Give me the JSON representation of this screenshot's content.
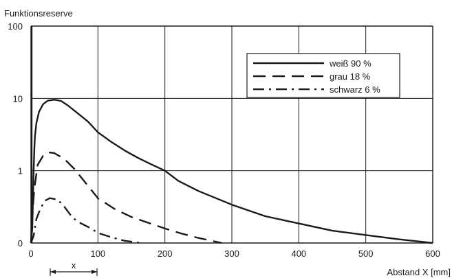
{
  "chart_data": {
    "type": "line",
    "ylabel": "Funktionsreserve",
    "xlabel": "Abstand X [mm]",
    "x_ticks": [
      "0",
      "100",
      "200",
      "300",
      "400",
      "500",
      "600"
    ],
    "y_ticks": [
      "0",
      "1",
      "10",
      "100"
    ],
    "xlim": [
      0,
      600
    ],
    "y_scale": "log",
    "grid": true,
    "legend_position": "top-right",
    "series": [
      {
        "name": "weiß 90 %",
        "style": "solid",
        "points": [
          [
            0,
            0
          ],
          [
            2,
            0.2
          ],
          [
            4,
            1.0
          ],
          [
            5,
            2
          ],
          [
            6,
            3
          ],
          [
            8,
            4.5
          ],
          [
            12,
            6.5
          ],
          [
            18,
            8.3
          ],
          [
            25,
            9.3
          ],
          [
            35,
            9.6
          ],
          [
            45,
            9.2
          ],
          [
            55,
            8.0
          ],
          [
            70,
            6.2
          ],
          [
            85,
            4.8
          ],
          [
            100,
            3.4
          ],
          [
            120,
            2.5
          ],
          [
            140,
            1.9
          ],
          [
            160,
            1.5
          ],
          [
            180,
            1.22
          ],
          [
            200,
            1.0
          ],
          [
            220,
            0.86
          ],
          [
            250,
            0.72
          ],
          [
            300,
            0.53
          ],
          [
            350,
            0.37
          ],
          [
            400,
            0.27
          ],
          [
            450,
            0.17
          ],
          [
            500,
            0.11
          ],
          [
            550,
            0.05
          ],
          [
            600,
            0
          ]
        ]
      },
      {
        "name": "grau 18 %",
        "style": "dashed",
        "points": [
          [
            0,
            0
          ],
          [
            3,
            0.5
          ],
          [
            5,
            0.75
          ],
          [
            10,
            1.2
          ],
          [
            18,
            1.6
          ],
          [
            25,
            1.8
          ],
          [
            35,
            1.75
          ],
          [
            50,
            1.45
          ],
          [
            65,
            1.05
          ],
          [
            80,
            0.85
          ],
          [
            100,
            0.62
          ],
          [
            125,
            0.47
          ],
          [
            150,
            0.36
          ],
          [
            175,
            0.28
          ],
          [
            200,
            0.2
          ],
          [
            225,
            0.13
          ],
          [
            250,
            0.07
          ],
          [
            270,
            0.03
          ],
          [
            285,
            0
          ]
        ]
      },
      {
        "name": "schwarz 6 %",
        "style": "dashdot",
        "points": [
          [
            0,
            0
          ],
          [
            4,
            0.1
          ],
          [
            8,
            0.33
          ],
          [
            13,
            0.45
          ],
          [
            20,
            0.58
          ],
          [
            28,
            0.62
          ],
          [
            40,
            0.6
          ],
          [
            50,
            0.5
          ],
          [
            62,
            0.35
          ],
          [
            75,
            0.27
          ],
          [
            90,
            0.2
          ],
          [
            100,
            0.14
          ],
          [
            120,
            0.08
          ],
          [
            140,
            0.03
          ],
          [
            165,
            0
          ]
        ]
      }
    ],
    "annotation_x": "x"
  },
  "colors": {
    "line": "#1a1a1a",
    "grid": "#1a1a1a",
    "background": "#ffffff"
  }
}
